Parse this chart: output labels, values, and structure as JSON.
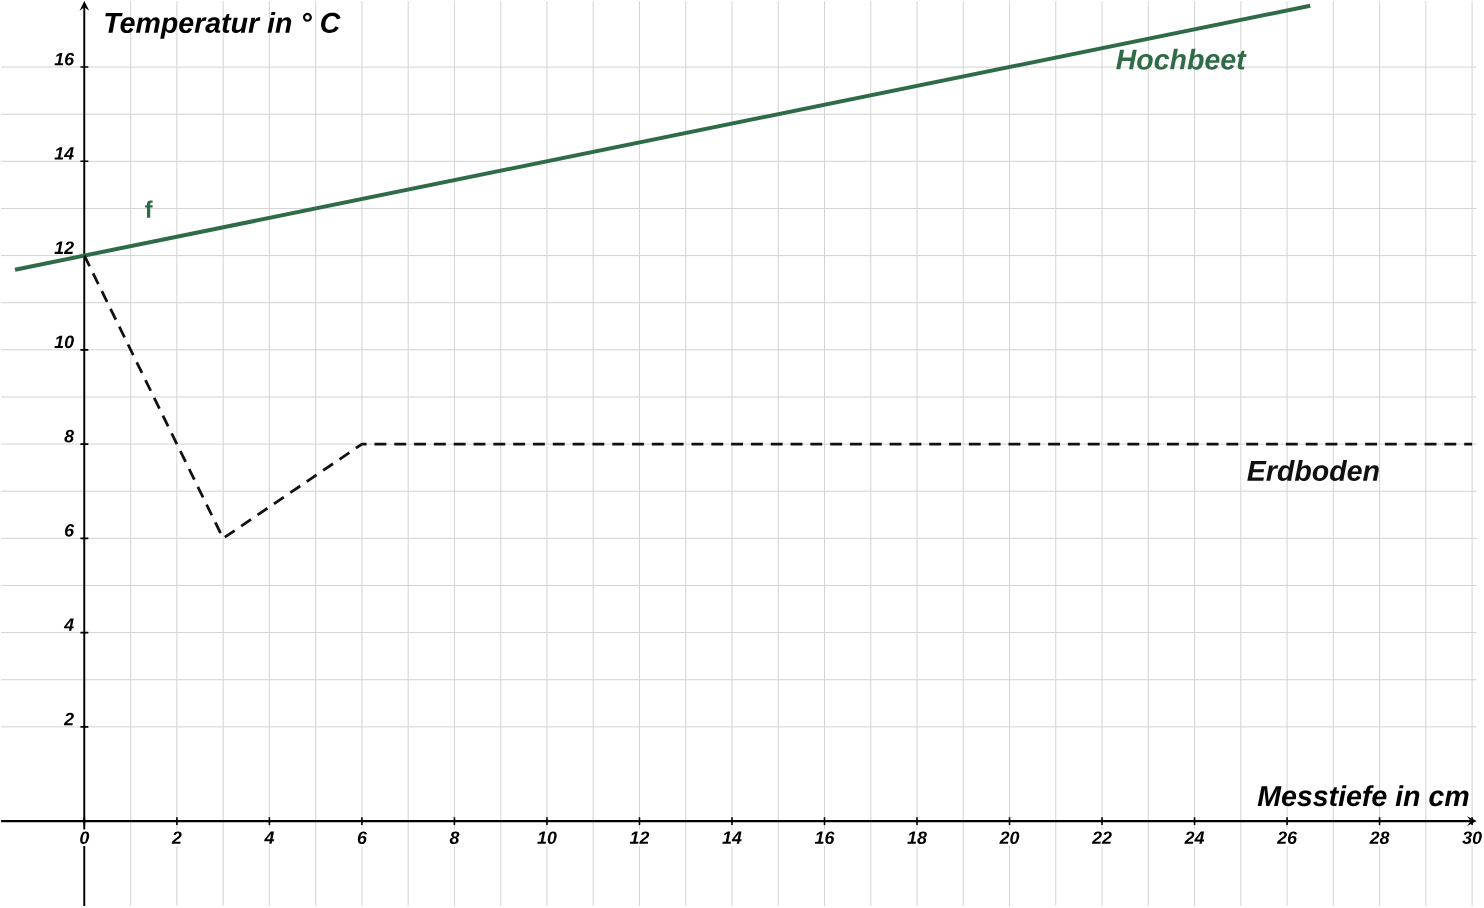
{
  "chart_data": {
    "type": "line",
    "xlabel": "Messtiefe in cm",
    "ylabel": "Temperatur in ° C",
    "xlim": [
      -1.8,
      30.1
    ],
    "ylim": [
      -1.8,
      17.4
    ],
    "xticks": [
      0,
      2,
      4,
      6,
      8,
      10,
      12,
      14,
      16,
      18,
      20,
      22,
      24,
      26,
      28,
      30
    ],
    "yticks": [
      2,
      4,
      6,
      8,
      10,
      12,
      14,
      16
    ],
    "grid": true,
    "series": [
      {
        "name": "Hochbeet",
        "color": "#2f6b47",
        "x": [
          -1.5,
          26.5
        ],
        "values": [
          11.7,
          17.3
        ],
        "line_style": "solid"
      },
      {
        "name": "Erdboden",
        "color": "#111111",
        "x": [
          0,
          3,
          6,
          30
        ],
        "values": [
          12,
          6,
          8,
          8
        ],
        "line_style": "dashed"
      }
    ],
    "annotations": [
      "f"
    ]
  }
}
